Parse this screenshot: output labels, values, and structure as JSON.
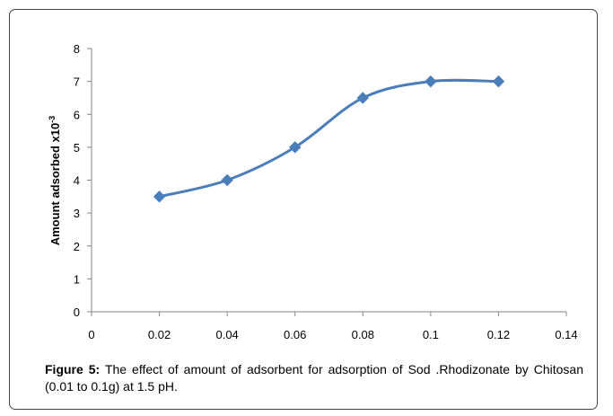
{
  "chart_data": {
    "type": "line",
    "title": "",
    "xlabel": "",
    "ylabel": "Amount adsorbed x10",
    "ylabel_sup": "-3",
    "xlim": [
      0,
      0.14
    ],
    "ylim": [
      0,
      8
    ],
    "x_ticks": [
      "0",
      "0.02",
      "0.04",
      "0.06",
      "0.08",
      "0.1",
      "0.12",
      "0.14"
    ],
    "y_ticks": [
      "0",
      "1",
      "2",
      "3",
      "4",
      "5",
      "6",
      "7",
      "8"
    ],
    "grid": false,
    "marker": "diamond",
    "smooth": true,
    "series_color": "#4a7ebb",
    "series": [
      {
        "x": [
          0.02,
          0.04,
          0.06,
          0.08,
          0.1,
          0.12
        ],
        "y": [
          3.5,
          4.0,
          5.0,
          6.5,
          7.0,
          7.0
        ]
      }
    ]
  },
  "caption": {
    "label": "Figure 5:",
    "text": " The effect of amount of adsorbent for adsorption of Sod .Rhodizonate by Chitosan (0.01 to 0.1g) at 1.5 pH."
  }
}
